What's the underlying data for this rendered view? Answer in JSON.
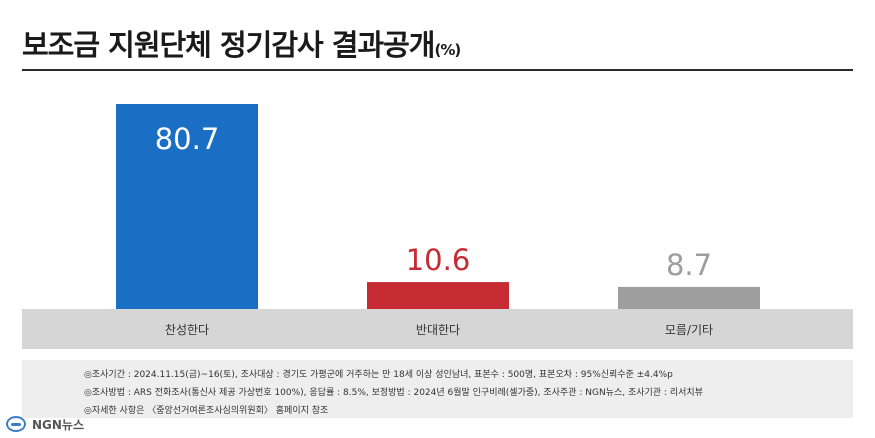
{
  "title": "보조금 지원단체 정기감사 결과공개",
  "title_unit": "(%)",
  "chart_data": {
    "type": "bar",
    "title": "보조금 지원단체 정기감사 결과공개",
    "unit": "(%)",
    "categories": [
      "찬성한다",
      "반대한다",
      "모름/기타"
    ],
    "values": [
      80.7,
      10.6,
      8.7
    ],
    "value_labels": [
      "80.7",
      "10.6",
      "8.7"
    ],
    "colors": [
      "#1a6fc4",
      "#c62a33",
      "#9e9e9e"
    ],
    "label_colors": [
      "#ffffff",
      "#c62a33",
      "#9e9e9e"
    ],
    "ylim": [
      0,
      80.7
    ],
    "grid": false,
    "legend": "none"
  },
  "footnotes": [
    "◎조사기간 : 2024.11.15(금)~16(토), 조사대상 : 경기도 가평군에 거주하는 만 18세 이상 성인남녀, 표본수 : 500명, 표본오차 : 95%신뢰수준 ±4.4%p",
    "◎조사방법 : ARS 전화조사(통신사 제공 가상번호 100%), 응답률 : 8.5%, 보정방법 : 2024년 6월말 인구비례(셀가중), 조사주관 : NGN뉴스, 조사기관 : 리서치뷰",
    "◎자세한 사항은 〈중앙선거여론조사심의위원회〉 홈페이지 참조"
  ],
  "logo": {
    "text": "NGN뉴스",
    "icon": "ngn-globe-icon"
  }
}
